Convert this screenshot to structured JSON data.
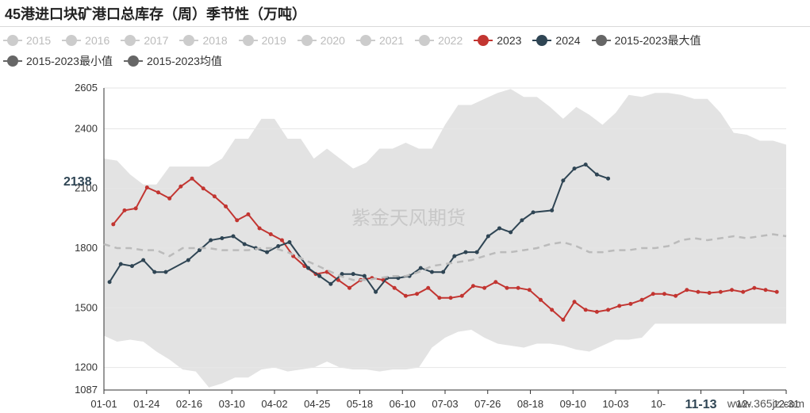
{
  "title": "45港进口块矿港口总库存（周）季节性（万吨）",
  "watermark": "紫金天风期货",
  "corner_text": "www.365jz.com",
  "highlight": {
    "x_label": "11-13",
    "y_label": "2138"
  },
  "legend": [
    {
      "label": "2015",
      "color": "#cccccc",
      "active": false
    },
    {
      "label": "2016",
      "color": "#cccccc",
      "active": false
    },
    {
      "label": "2017",
      "color": "#cccccc",
      "active": false
    },
    {
      "label": "2018",
      "color": "#cccccc",
      "active": false
    },
    {
      "label": "2019",
      "color": "#cccccc",
      "active": false
    },
    {
      "label": "2020",
      "color": "#cccccc",
      "active": false
    },
    {
      "label": "2021",
      "color": "#cccccc",
      "active": false
    },
    {
      "label": "2022",
      "color": "#cccccc",
      "active": false
    },
    {
      "label": "2023",
      "color": "#c23531",
      "active": true
    },
    {
      "label": "2024",
      "color": "#2f4554",
      "active": true
    },
    {
      "label": "2015-2023最大值",
      "color": "#666666",
      "active": true
    },
    {
      "label": "2015-2023最小值",
      "color": "#666666",
      "active": true
    },
    {
      "label": "2015-2023均值",
      "color": "#666666",
      "active": true
    }
  ],
  "chart_data": {
    "type": "line",
    "title": "45港进口块矿港口总库存（周）季节性（万吨）",
    "y_ticks": [
      1087,
      1200,
      1500,
      1800,
      2100,
      2400,
      2605
    ],
    "ylim": [
      1087,
      2605
    ],
    "x_ticks": [
      "01-01",
      "01-24",
      "02-16",
      "03-10",
      "04-02",
      "04-25",
      "05-18",
      "06-10",
      "07-03",
      "07-26",
      "08-18",
      "09-10",
      "10-03",
      "10-",
      "11-13",
      "12-",
      "12-31"
    ],
    "xlim": [
      1,
      365
    ],
    "legend_position": "top-left",
    "band": {
      "name_max": "2015-2023最大值",
      "name_min": "2015-2023最小值",
      "color": "#e3e3e3",
      "x": [
        1,
        8,
        15,
        22,
        29,
        36,
        43,
        50,
        57,
        64,
        71,
        78,
        85,
        92,
        99,
        106,
        113,
        120,
        127,
        134,
        141,
        148,
        155,
        162,
        169,
        176,
        183,
        190,
        197,
        204,
        211,
        218,
        225,
        232,
        239,
        246,
        253,
        260,
        267,
        274,
        281,
        288,
        295,
        302,
        309,
        316,
        323,
        330,
        337,
        344,
        351,
        358,
        365
      ],
      "max": [
        2250,
        2240,
        2170,
        2120,
        2120,
        2210,
        2210,
        2210,
        2210,
        2250,
        2350,
        2350,
        2450,
        2450,
        2350,
        2350,
        2250,
        2300,
        2250,
        2200,
        2230,
        2300,
        2300,
        2330,
        2300,
        2300,
        2420,
        2520,
        2520,
        2550,
        2580,
        2600,
        2560,
        2560,
        2510,
        2450,
        2510,
        2470,
        2420,
        2480,
        2570,
        2560,
        2580,
        2580,
        2570,
        2550,
        2550,
        2480,
        2380,
        2370,
        2340,
        2340,
        2320
      ],
      "min": [
        1360,
        1330,
        1340,
        1330,
        1280,
        1240,
        1190,
        1180,
        1100,
        1120,
        1150,
        1150,
        1190,
        1200,
        1180,
        1190,
        1200,
        1230,
        1200,
        1190,
        1190,
        1180,
        1190,
        1190,
        1200,
        1300,
        1350,
        1380,
        1390,
        1350,
        1320,
        1310,
        1300,
        1320,
        1320,
        1310,
        1290,
        1280,
        1310,
        1340,
        1340,
        1350,
        1420,
        1420,
        1420,
        1420,
        1420,
        1420,
        1420,
        1420,
        1420,
        1420,
        1420
      ]
    },
    "series": [
      {
        "name": "2023",
        "color": "#c23531",
        "marker": true,
        "x": [
          6,
          12,
          18,
          24,
          30,
          36,
          42,
          48,
          54,
          60,
          66,
          72,
          78,
          84,
          90,
          96,
          102,
          108,
          114,
          120,
          126,
          132,
          138,
          144,
          150,
          156,
          162,
          168,
          174,
          180,
          186,
          192,
          198,
          204,
          210,
          216,
          222,
          228,
          234,
          240,
          246,
          252,
          258,
          264,
          270,
          276,
          282,
          288,
          294,
          300,
          306,
          312,
          318,
          324,
          330,
          336,
          342,
          348,
          354,
          360
        ],
        "y": [
          1920,
          1990,
          2000,
          2105,
          2080,
          2050,
          2110,
          2150,
          2100,
          2060,
          2010,
          1940,
          1970,
          1900,
          1870,
          1840,
          1760,
          1710,
          1670,
          1680,
          1640,
          1600,
          1640,
          1650,
          1640,
          1600,
          1560,
          1570,
          1600,
          1550,
          1550,
          1560,
          1610,
          1600,
          1630,
          1600,
          1600,
          1590,
          1540,
          1490,
          1440,
          1530,
          1490,
          1480,
          1490,
          1510,
          1520,
          1540,
          1570,
          1570,
          1560,
          1590,
          1580,
          1575,
          1580,
          1590,
          1580,
          1600,
          1590,
          1580
        ]
      },
      {
        "name": "2024",
        "color": "#2f4554",
        "marker": true,
        "x": [
          4,
          10,
          16,
          22,
          28,
          34,
          46,
          52,
          58,
          64,
          70,
          76,
          82,
          88,
          94,
          100,
          110,
          116,
          122,
          128,
          134,
          140,
          146,
          152,
          158,
          164,
          170,
          176,
          182,
          188,
          194,
          200,
          206,
          212,
          218,
          224,
          230,
          240,
          246,
          252,
          258,
          264,
          270
        ],
        "y": [
          1630,
          1720,
          1710,
          1740,
          1680,
          1680,
          1740,
          1790,
          1840,
          1850,
          1860,
          1820,
          1800,
          1780,
          1810,
          1830,
          1700,
          1660,
          1620,
          1670,
          1670,
          1660,
          1580,
          1650,
          1650,
          1660,
          1700,
          1680,
          1680,
          1760,
          1780,
          1780,
          1860,
          1900,
          1880,
          1940,
          1980,
          1990,
          2140,
          2200,
          2220,
          2170,
          2150
        ]
      },
      {
        "name": "2015-2023均值",
        "color": "#bbbbbb",
        "dashed": true,
        "marker": false,
        "x": [
          1,
          8,
          15,
          22,
          29,
          36,
          43,
          50,
          57,
          64,
          71,
          78,
          85,
          92,
          99,
          106,
          113,
          120,
          127,
          134,
          141,
          148,
          155,
          162,
          169,
          176,
          183,
          190,
          197,
          204,
          211,
          218,
          225,
          232,
          239,
          246,
          253,
          260,
          267,
          274,
          281,
          288,
          295,
          302,
          309,
          316,
          323,
          330,
          337,
          344,
          351,
          358,
          365
        ],
        "y": [
          1820,
          1800,
          1800,
          1790,
          1790,
          1760,
          1800,
          1800,
          1800,
          1790,
          1790,
          1790,
          1800,
          1800,
          1780,
          1750,
          1720,
          1690,
          1660,
          1640,
          1640,
          1650,
          1660,
          1660,
          1680,
          1710,
          1720,
          1730,
          1740,
          1760,
          1780,
          1780,
          1790,
          1800,
          1820,
          1830,
          1810,
          1780,
          1780,
          1790,
          1790,
          1800,
          1800,
          1810,
          1840,
          1850,
          1840,
          1850,
          1860,
          1850,
          1860,
          1870,
          1860
        ]
      }
    ]
  }
}
